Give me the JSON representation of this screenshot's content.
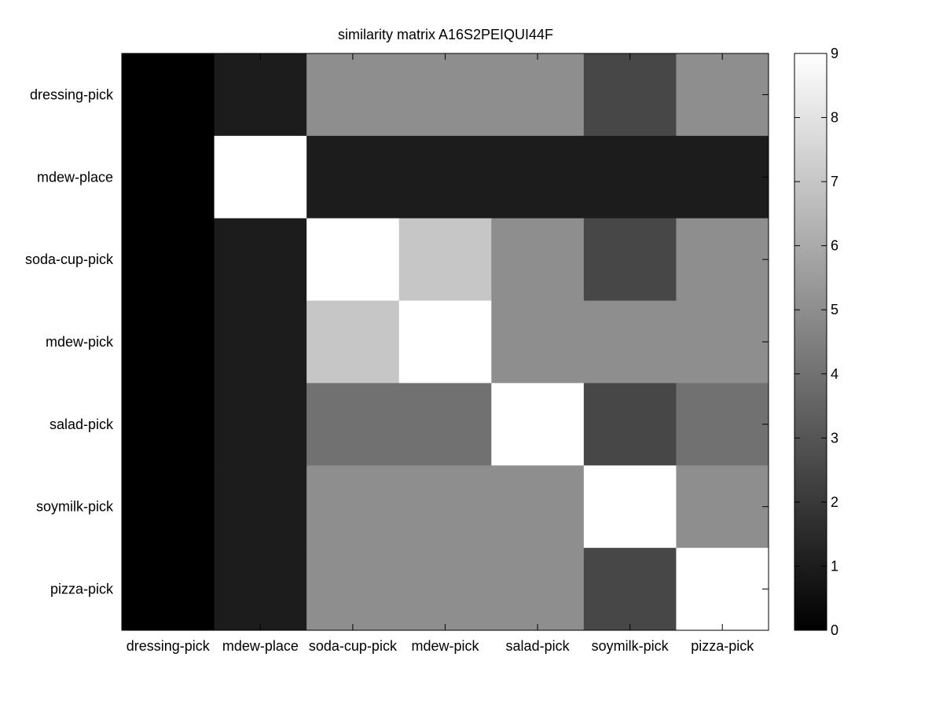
{
  "chart_data": {
    "type": "heatmap",
    "title": "similarity matrix A16S2PEIQUI44F",
    "xlabel": "",
    "ylabel": "",
    "categories": [
      "dressing-pick",
      "mdew-place",
      "soda-cup-pick",
      "mdew-pick",
      "salad-pick",
      "soymilk-pick",
      "pizza-pick"
    ],
    "rows": [
      "dressing-pick",
      "mdew-place",
      "soda-cup-pick",
      "mdew-pick",
      "salad-pick",
      "soymilk-pick",
      "pizza-pick"
    ],
    "values": [
      [
        0,
        1,
        5,
        5,
        5,
        2.5,
        5
      ],
      [
        0,
        9,
        1,
        1,
        1,
        1,
        1
      ],
      [
        0,
        1,
        9,
        7,
        5,
        2.5,
        5
      ],
      [
        0,
        1,
        7,
        9,
        5,
        5,
        5
      ],
      [
        0,
        1,
        4,
        4,
        9,
        2.5,
        4
      ],
      [
        0,
        1,
        5,
        5,
        5,
        9,
        5
      ],
      [
        0,
        1,
        5,
        5,
        5,
        2.5,
        9
      ]
    ],
    "colormap": "gray",
    "colorbar": {
      "range": [
        0,
        9
      ],
      "ticks": [
        "0",
        "1",
        "2",
        "3",
        "4",
        "5",
        "6",
        "7",
        "8",
        "9"
      ]
    },
    "grid": false,
    "legend": "colorbar-right"
  }
}
